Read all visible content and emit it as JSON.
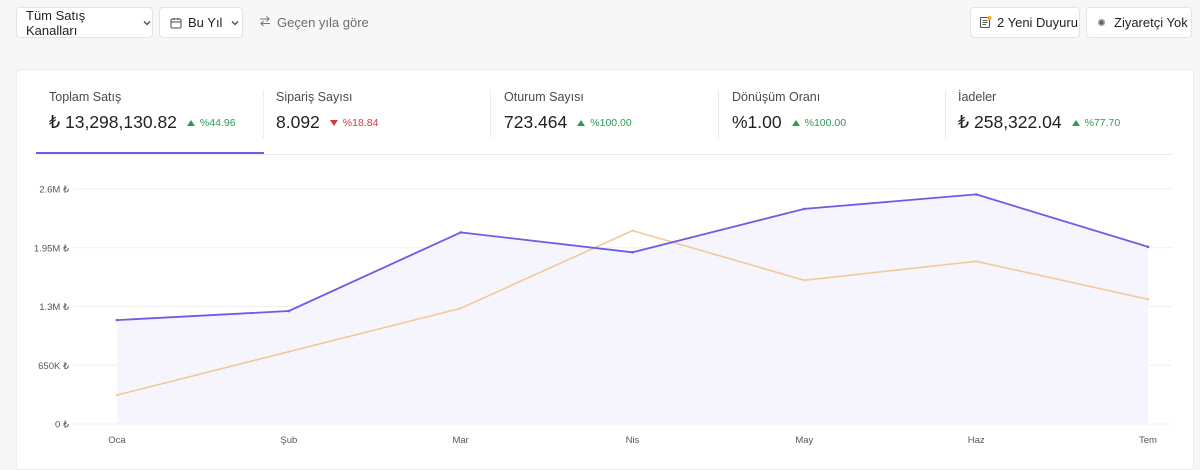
{
  "toolbar": {
    "channel_filter": "Tüm Satış Kanalları",
    "period_filter": "Bu Yıl",
    "compare_label": "Geçen yıla göre",
    "announcements_label": "2 Yeni Duyuru",
    "visitor_label": "Ziyaretçi Yok"
  },
  "metrics": [
    {
      "label": "Toplam Satış",
      "value": "₺ 13,298,130.82",
      "delta": "%44.96",
      "direction": "up"
    },
    {
      "label": "Sipariş Sayısı",
      "value": "8.092",
      "delta": "%18.84",
      "direction": "down"
    },
    {
      "label": "Oturum Sayısı",
      "value": "723.464",
      "delta": "%100.00",
      "direction": "up"
    },
    {
      "label": "Dönüşüm Oranı",
      "value": "%1.00",
      "delta": "%100.00",
      "direction": "up"
    },
    {
      "label": "İadeler",
      "value": "₺ 258,322.04",
      "delta": "%77.70",
      "direction": "up"
    }
  ],
  "colors": {
    "current_series": "#6c5ce7",
    "previous_series": "#f3c998",
    "area_fill": "#f6f4fd",
    "up": "#2f9a55",
    "down": "#d23b3b",
    "badge_dot": "#f5a623"
  },
  "icons": {
    "period": "calendar-icon",
    "compare": "swap-arrows-icon",
    "announcements": "newspaper-icon",
    "visitor": "status-dot-icon",
    "filter": "chevron-down-icon"
  },
  "chart_data": {
    "type": "line",
    "categories": [
      "Oca",
      "Şub",
      "Mar",
      "Nis",
      "May",
      "Haz",
      "Tem"
    ],
    "series": [
      {
        "values": [
          1150000,
          1250000,
          2120000,
          1900000,
          2380000,
          2540000,
          1960000
        ]
      },
      {
        "values": [
          320000,
          800000,
          1280000,
          2140000,
          1590000,
          1800000,
          1380000
        ]
      }
    ],
    "yticks": [
      0,
      650000,
      1300000,
      1950000,
      2600000
    ],
    "ytick_labels": [
      "0 ₺",
      "650K ₺",
      "1.3M ₺",
      "1.95M ₺",
      "2.6M ₺"
    ],
    "ylim": [
      0,
      2600000
    ],
    "grid": true
  }
}
